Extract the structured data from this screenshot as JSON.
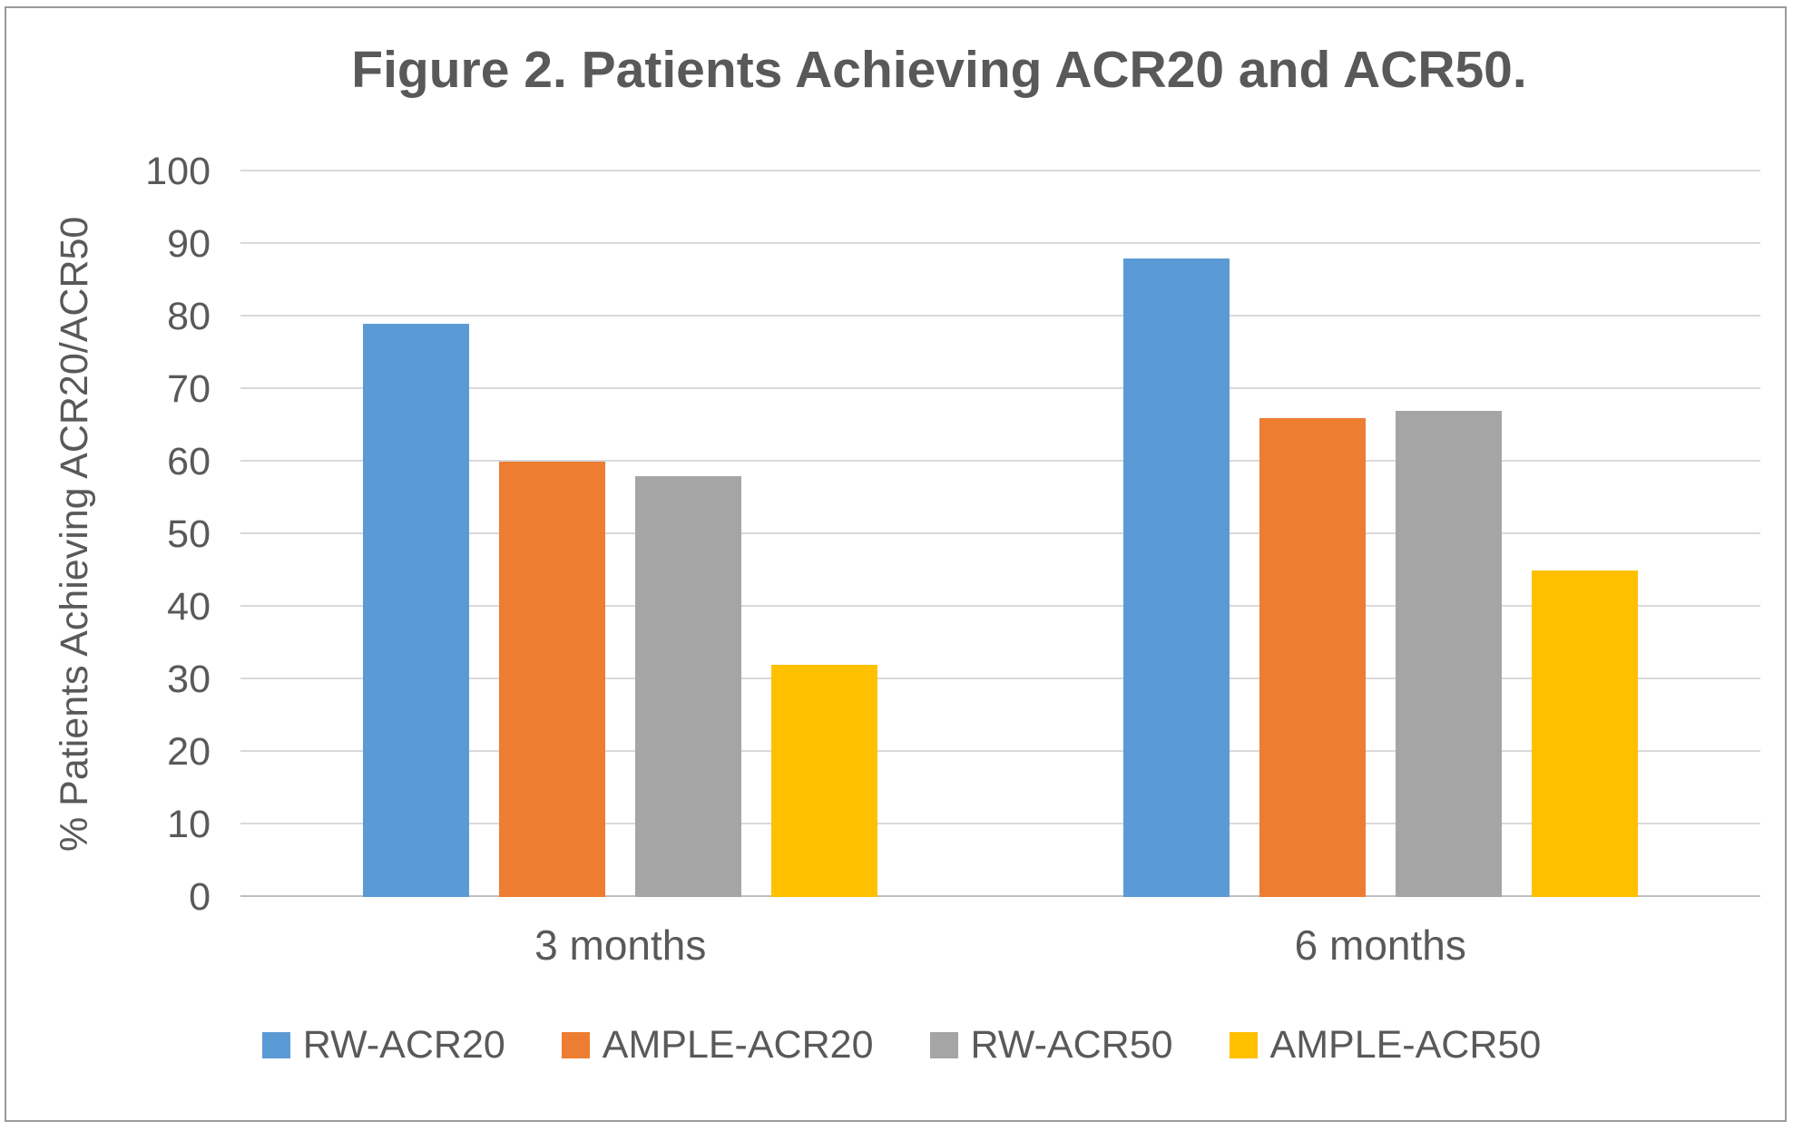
{
  "chart_data": {
    "type": "bar",
    "title": "Figure 2. Patients Achieving ACR20 and ACR50.",
    "ylabel": "% Patients Achieving ACR20/ACR50",
    "xlabel": "",
    "categories": [
      "3 months",
      "6 months"
    ],
    "series": [
      {
        "name": "RW-ACR20",
        "color": "#5B9BD5",
        "values": [
          79,
          88
        ]
      },
      {
        "name": "AMPLE-ACR20",
        "color": "#ED7D31",
        "values": [
          60,
          66
        ]
      },
      {
        "name": "RW-ACR50",
        "color": "#A5A5A5",
        "values": [
          58,
          67
        ]
      },
      {
        "name": "AMPLE-ACR50",
        "color": "#FFC000",
        "values": [
          32,
          45
        ]
      }
    ],
    "ylim": [
      0,
      100
    ],
    "ytick_interval": 10,
    "ytick_labels": [
      "0",
      "10",
      "20",
      "30",
      "40",
      "50",
      "60",
      "70",
      "80",
      "90",
      "100"
    ],
    "grid": true,
    "legend_position": "bottom"
  },
  "colors": {
    "text": "#595959",
    "gridline": "#D9D9D9",
    "axis_line": "#BFBFBF",
    "frame_border": "#9B9B9B",
    "background": "#FFFFFF"
  }
}
